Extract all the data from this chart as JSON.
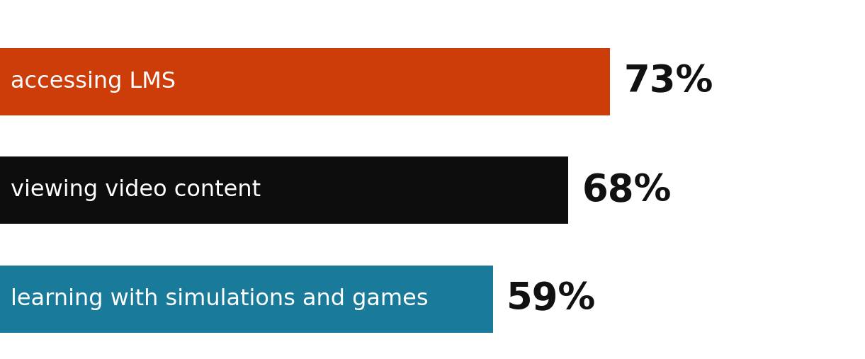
{
  "categories": [
    "accessing LMS",
    "viewing video content",
    "learning with simulations and games"
  ],
  "values": [
    73,
    68,
    59
  ],
  "max_value": 100,
  "bar_colors": [
    "#cc3d0a",
    "#0d0d0d",
    "#1a7a9a"
  ],
  "label_color": "#ffffff",
  "value_color": "#111111",
  "background_color": "#ffffff",
  "bar_height": 0.62,
  "label_fontsize": 23,
  "value_fontsize": 38,
  "figsize": [
    12.21,
    5.07
  ],
  "dpi": 100,
  "xlim": [
    0,
    95
  ],
  "ylim": [
    -0.55,
    2.75
  ]
}
